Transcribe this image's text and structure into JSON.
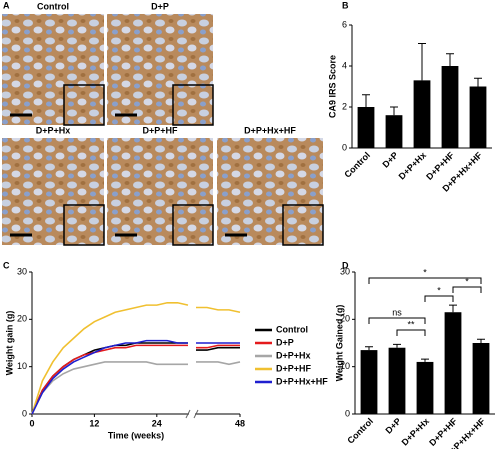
{
  "panel_labels": [
    "A",
    "B",
    "C",
    "D"
  ],
  "images": [
    {
      "label": "Control"
    },
    {
      "label": "D+P"
    },
    {
      "label": "D+P+Hx"
    },
    {
      "label": "D+P+HF"
    },
    {
      "label": "D+P+Hx+HF"
    }
  ],
  "chart_data": [
    {
      "type": "bar",
      "ylabel": "CA9 IRS Score",
      "categories": [
        "Control",
        "D+P",
        "D+P+Hx",
        "D+P+HF",
        "D+P+Hx+HF"
      ],
      "values": [
        2.0,
        1.6,
        3.3,
        4.0,
        3.0
      ],
      "errors": [
        0.6,
        0.4,
        1.8,
        0.6,
        0.4
      ],
      "color": "#000000",
      "ylim": [
        0,
        6
      ],
      "yticks": [
        0,
        2,
        4,
        6
      ]
    },
    {
      "type": "line",
      "xlabel": "Time (weeks)",
      "ylabel": "Weight gain (g)",
      "x": [
        0,
        2,
        4,
        6,
        8,
        10,
        12,
        14,
        16,
        18,
        20,
        22,
        24,
        26,
        28,
        30,
        40,
        42,
        44,
        46,
        48
      ],
      "axis_break": [
        30,
        40
      ],
      "xlim": [
        0,
        48
      ],
      "xticks": [
        0,
        12,
        24,
        48
      ],
      "ylim": [
        0,
        30
      ],
      "yticks": [
        0,
        10,
        20,
        30
      ],
      "series": [
        {
          "name": "Control",
          "color": "#000000",
          "values": [
            0,
            5,
            8,
            10,
            11.5,
            12.5,
            13.5,
            14,
            14.5,
            14.5,
            15,
            15,
            15,
            15,
            15,
            15,
            13.5,
            13.5,
            14,
            14,
            14
          ]
        },
        {
          "name": "D+P",
          "color": "#e41a1c",
          "values": [
            0,
            5,
            8,
            10,
            11.5,
            12.5,
            13,
            13.5,
            14,
            14,
            14.5,
            14.5,
            14.5,
            14.5,
            14.5,
            14.5,
            14,
            14,
            14.5,
            14.5,
            14.5
          ]
        },
        {
          "name": "D+P+Hx",
          "color": "#a6a6a6",
          "values": [
            0,
            4.5,
            7,
            8.5,
            9.5,
            10,
            10.5,
            11,
            11,
            11,
            11,
            11,
            10.5,
            10.5,
            10.5,
            10.5,
            11,
            11,
            11,
            10.5,
            11
          ]
        },
        {
          "name": "D+P+HF",
          "color": "#f0c030",
          "values": [
            0,
            7,
            11,
            14,
            16,
            18,
            19.5,
            20.5,
            21.5,
            22,
            22.5,
            23,
            23,
            23.5,
            23.5,
            23,
            22.5,
            22.5,
            22,
            22,
            21.5
          ]
        },
        {
          "name": "D+P+Hx+HF",
          "color": "#1f1fcf",
          "values": [
            0,
            4.5,
            7.5,
            9.5,
            11,
            12,
            13,
            14,
            14.5,
            15,
            15,
            15.5,
            15.5,
            15.5,
            15,
            15,
            15,
            15,
            15,
            15,
            15
          ]
        }
      ]
    },
    {
      "type": "bar",
      "ylabel": "Weight Gained (g)",
      "categories": [
        "Control",
        "D+P",
        "D+P+Hx",
        "D+P+HF",
        "D+P+Hx+HF"
      ],
      "values": [
        13.5,
        14,
        11,
        21.5,
        15
      ],
      "errors": [
        0.7,
        0.7,
        0.6,
        1.5,
        0.8
      ],
      "color": "#000000",
      "ylim": [
        0,
        30
      ],
      "yticks": [
        0,
        10,
        20,
        30
      ],
      "comparisons": [
        {
          "between": [
            "Control",
            "D+P+Hx"
          ],
          "label": "ns"
        },
        {
          "between": [
            "D+P",
            "D+P+Hx"
          ],
          "label": "**"
        },
        {
          "between": [
            "D+P+Hx",
            "D+P+HF"
          ],
          "label": "*"
        },
        {
          "between": [
            "D+P+HF",
            "D+P+Hx+HF"
          ],
          "label": "*"
        },
        {
          "between": [
            "Control",
            "D+P+Hx+HF"
          ],
          "label": "*"
        }
      ]
    }
  ]
}
